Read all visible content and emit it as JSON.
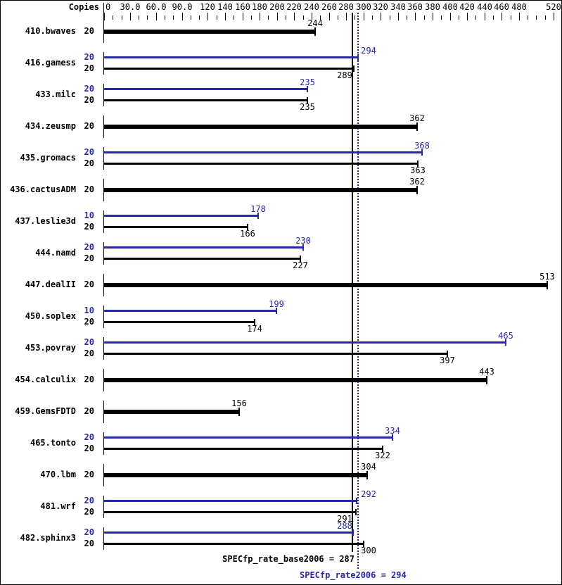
{
  "header": {
    "copies_label": "Copies"
  },
  "colors": {
    "base": "#000000",
    "peak": "#2828a8",
    "background": "#ffffff",
    "border": "#000000"
  },
  "chart_data": {
    "type": "bar",
    "orientation": "horizontal",
    "copies_header": "Copies",
    "xlim": [
      0,
      520
    ],
    "minor_tick_step": 10,
    "grid": false,
    "tick_labels": [
      {
        "value": 0,
        "label": "0"
      },
      {
        "value": 30,
        "label": "30.0"
      },
      {
        "value": 60,
        "label": "60.0"
      },
      {
        "value": 90,
        "label": "90.0"
      },
      {
        "value": 120,
        "label": "120"
      },
      {
        "value": 140,
        "label": "140"
      },
      {
        "value": 160,
        "label": "160"
      },
      {
        "value": 180,
        "label": "180"
      },
      {
        "value": 200,
        "label": "200"
      },
      {
        "value": 220,
        "label": "220"
      },
      {
        "value": 240,
        "label": "240"
      },
      {
        "value": 260,
        "label": "260"
      },
      {
        "value": 280,
        "label": "280"
      },
      {
        "value": 300,
        "label": "300"
      },
      {
        "value": 320,
        "label": "320"
      },
      {
        "value": 340,
        "label": "340"
      },
      {
        "value": 360,
        "label": "360"
      },
      {
        "value": 380,
        "label": "380"
      },
      {
        "value": 400,
        "label": "400"
      },
      {
        "value": 420,
        "label": "420"
      },
      {
        "value": 440,
        "label": "440"
      },
      {
        "value": 460,
        "label": "460"
      },
      {
        "value": 480,
        "label": "480"
      },
      {
        "value": 520,
        "label": "520"
      }
    ],
    "benchmarks": [
      {
        "name": "410.bwaves",
        "bars": [
          {
            "kind": "base",
            "copies": 20,
            "value": 244
          }
        ]
      },
      {
        "name": "416.gamess",
        "bars": [
          {
            "kind": "peak",
            "copies": 20,
            "value": 294
          },
          {
            "kind": "base",
            "copies": 20,
            "value": 289
          }
        ]
      },
      {
        "name": "433.milc",
        "bars": [
          {
            "kind": "peak",
            "copies": 20,
            "value": 235
          },
          {
            "kind": "base",
            "copies": 20,
            "value": 235
          }
        ]
      },
      {
        "name": "434.zeusmp",
        "bars": [
          {
            "kind": "base",
            "copies": 20,
            "value": 362
          }
        ]
      },
      {
        "name": "435.gromacs",
        "bars": [
          {
            "kind": "peak",
            "copies": 20,
            "value": 368
          },
          {
            "kind": "base",
            "copies": 20,
            "value": 363
          }
        ]
      },
      {
        "name": "436.cactusADM",
        "bars": [
          {
            "kind": "base",
            "copies": 20,
            "value": 362
          }
        ]
      },
      {
        "name": "437.leslie3d",
        "bars": [
          {
            "kind": "peak",
            "copies": 10,
            "value": 178
          },
          {
            "kind": "base",
            "copies": 20,
            "value": 166
          }
        ]
      },
      {
        "name": "444.namd",
        "bars": [
          {
            "kind": "peak",
            "copies": 20,
            "value": 230
          },
          {
            "kind": "base",
            "copies": 20,
            "value": 227
          }
        ]
      },
      {
        "name": "447.dealII",
        "bars": [
          {
            "kind": "base",
            "copies": 20,
            "value": 513
          }
        ]
      },
      {
        "name": "450.soplex",
        "bars": [
          {
            "kind": "peak",
            "copies": 10,
            "value": 199
          },
          {
            "kind": "base",
            "copies": 20,
            "value": 174
          }
        ]
      },
      {
        "name": "453.povray",
        "bars": [
          {
            "kind": "peak",
            "copies": 20,
            "value": 465
          },
          {
            "kind": "base",
            "copies": 20,
            "value": 397
          }
        ]
      },
      {
        "name": "454.calculix",
        "bars": [
          {
            "kind": "base",
            "copies": 20,
            "value": 443
          }
        ]
      },
      {
        "name": "459.GemsFDTD",
        "bars": [
          {
            "kind": "base",
            "copies": 20,
            "value": 156
          }
        ]
      },
      {
        "name": "465.tonto",
        "bars": [
          {
            "kind": "peak",
            "copies": 20,
            "value": 334
          },
          {
            "kind": "base",
            "copies": 20,
            "value": 322
          }
        ]
      },
      {
        "name": "470.lbm",
        "bars": [
          {
            "kind": "base",
            "copies": 20,
            "value": 304
          }
        ]
      },
      {
        "name": "481.wrf",
        "bars": [
          {
            "kind": "peak",
            "copies": 20,
            "value": 292
          },
          {
            "kind": "base",
            "copies": 20,
            "value": 291
          }
        ]
      },
      {
        "name": "482.sphinx3",
        "bars": [
          {
            "kind": "peak",
            "copies": 20,
            "value": 288
          },
          {
            "kind": "base",
            "copies": 20,
            "value": 300
          }
        ]
      }
    ],
    "reference_lines": [
      {
        "name": "base",
        "label": "SPECfp_rate_base2006 = 287",
        "value": 287,
        "style": "solid",
        "color": "#000000"
      },
      {
        "name": "peak",
        "label": "SPECfp_rate2006 = 294",
        "value": 294,
        "style": "dotted",
        "color": "#2828a8"
      }
    ]
  }
}
